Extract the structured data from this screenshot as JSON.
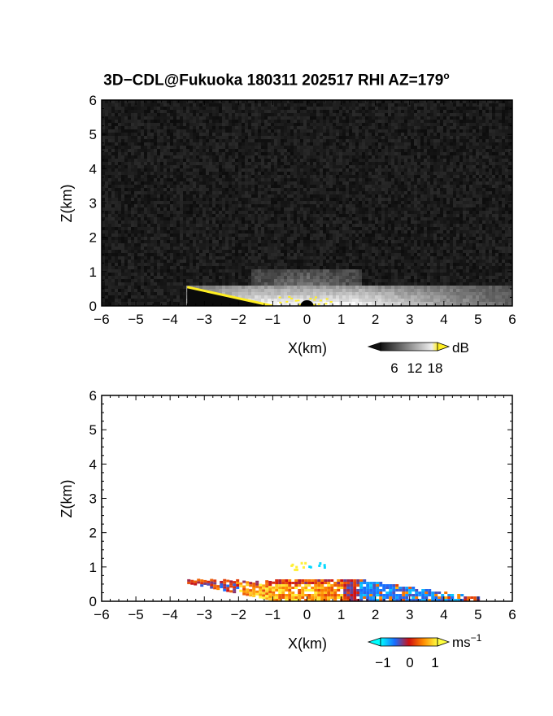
{
  "title_main": "3D−CDL@Fukuoka 180311 202517 RHI AZ=179",
  "title_deg": "o",
  "panels": [
    {
      "xlabel": "X(km)",
      "ylabel": "Z(km)",
      "colorbar": {
        "unit": "dB",
        "ticks": [
          "6",
          "12",
          "18"
        ]
      }
    },
    {
      "xlabel": "X(km)",
      "ylabel": "Z(km)",
      "colorbar": {
        "unit": "ms",
        "unit_sup": "−1",
        "ticks": [
          "−1",
          "0",
          "1"
        ]
      }
    }
  ],
  "colors": {
    "snr_low": "#1a1a1a",
    "snr_high": "#ffffff",
    "ground_clip": "#ffee22"
  },
  "chart_data": [
    {
      "type": "heatmap",
      "title": "3D−CDL@Fukuoka 180311 202517 RHI AZ=179°",
      "quantity": "SNR",
      "xlabel": "X(km)",
      "ylabel": "Z(km)",
      "xlim": [
        -6,
        6
      ],
      "ylim": [
        0,
        6
      ],
      "xticks": [
        "−6",
        "−5",
        "−4",
        "−3",
        "−2",
        "−1",
        "0",
        "1",
        "2",
        "3",
        "4",
        "5",
        "6"
      ],
      "yticks": [
        "0",
        "1",
        "2",
        "3",
        "4",
        "5",
        "6"
      ],
      "colorbar": {
        "unit": "dB",
        "ticks": [
          6,
          12,
          18
        ]
      },
      "features": {
        "echo_layer_top_km": 0.5,
        "echo_extent_x_km": [
          -3.5,
          6
        ],
        "max_snr_near_x_km": 0,
        "background": "noise"
      }
    },
    {
      "type": "heatmap",
      "quantity": "Doppler velocity",
      "xlabel": "X(km)",
      "ylabel": "Z(km)",
      "xlim": [
        -6,
        6
      ],
      "ylim": [
        0,
        6
      ],
      "xticks": [
        "−6",
        "−5",
        "−4",
        "−3",
        "−2",
        "−1",
        "0",
        "1",
        "2",
        "3",
        "4",
        "5",
        "6"
      ],
      "yticks": [
        "0",
        "1",
        "2",
        "3",
        "4",
        "5",
        "6"
      ],
      "colorbar": {
        "unit": "ms⁻¹",
        "ticks": [
          -1,
          0,
          1
        ]
      },
      "features": {
        "echo_layer_top_km": 0.6,
        "echo_extent_x_km": [
          -3.5,
          5
        ],
        "positive_core_x_km": [
          -2,
          1
        ],
        "negative_region_x_km": [
          1.5,
          4.5
        ],
        "isolated_echoes_z_km": 1.1
      }
    }
  ]
}
